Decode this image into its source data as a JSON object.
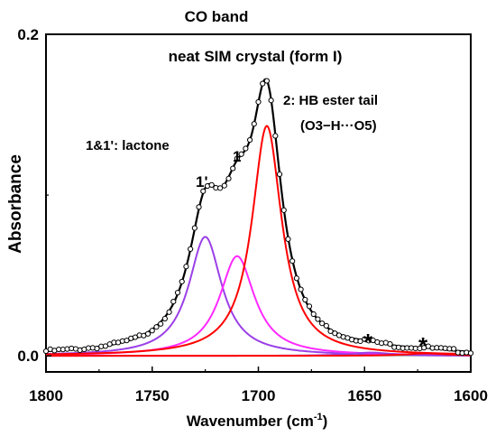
{
  "chart_data": {
    "type": "line",
    "title": "CO band",
    "subtitle": "neat SIM crystal (form I)",
    "xlabel": "Wavenumber (cm",
    "xlabel_sup": "-1",
    "xlabel_close": ")",
    "ylabel": "Absorbance",
    "x_range": [
      1800,
      1600
    ],
    "x_reversed": true,
    "ylim": [
      -0.01,
      0.2
    ],
    "x_ticks": [
      "1800",
      "1750",
      "1700",
      "1650",
      "1600"
    ],
    "y_ticks": [
      "0.0",
      "0.2"
    ],
    "annotations": {
      "lactone": "1&1': lactone",
      "peak1p": "1'",
      "peak1": "1",
      "hb_line1": "2: HB ester tail",
      "hb_line2": "(O3−H···O5)",
      "star": "*"
    },
    "colors": {
      "data": "#000000",
      "fit": "#000000",
      "comp_1p": "#9b3fe6",
      "comp_1": "#ff29ff",
      "comp_2": "#ff0000",
      "baseline": "#999999"
    },
    "components": [
      {
        "label": "1'",
        "center": 1725,
        "amplitude": 0.074,
        "hwhm": 9.5,
        "color": "#9b3fe6"
      },
      {
        "label": "1",
        "center": 1710,
        "amplitude": 0.062,
        "hwhm": 10,
        "color": "#ff29ff"
      },
      {
        "label": "2",
        "center": 1696,
        "amplitude": 0.143,
        "hwhm": 8.5,
        "color": "#ff0000"
      },
      {
        "label": "*",
        "center": 1647,
        "amplitude": 0.002,
        "hwhm": 12,
        "color": "#9b3fe6"
      },
      {
        "label": "*",
        "center": 1621,
        "amplitude": 0.0015,
        "hwhm": 12,
        "color": "#ff0000"
      }
    ],
    "series": [
      {
        "role": "data (circles)",
        "x_range": [
          1800,
          1600
        ],
        "step": 2
      },
      {
        "role": "envelope fit",
        "x_range": [
          1800,
          1600
        ]
      },
      {
        "role": "baseline",
        "value": 0.0
      }
    ],
    "grid": false,
    "legend": "none"
  }
}
